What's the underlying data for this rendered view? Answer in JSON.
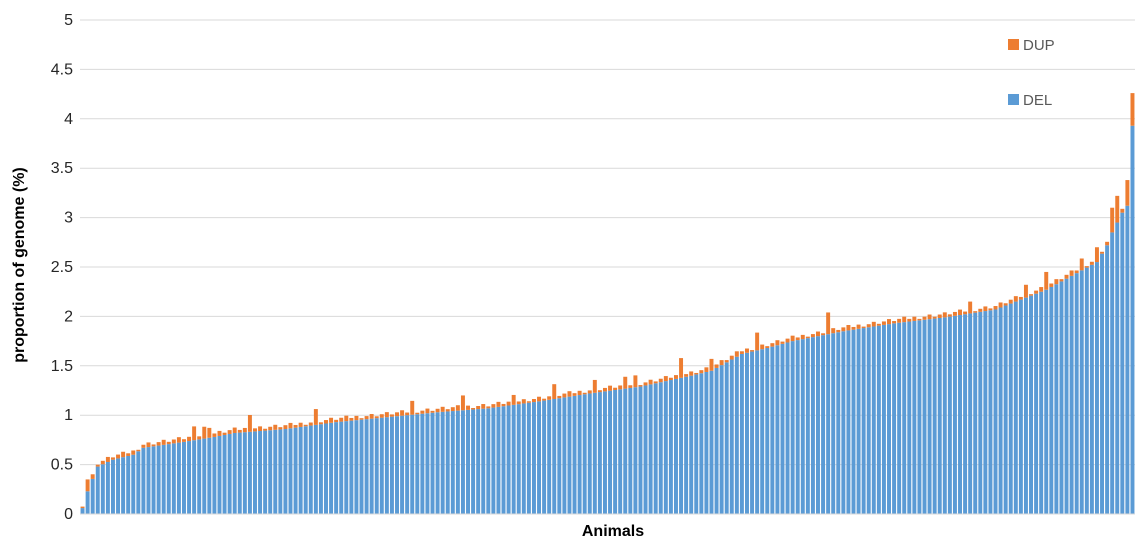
{
  "chart_data": {
    "type": "bar",
    "stacked": true,
    "title": "",
    "xlabel": "Animals",
    "ylabel": "proportion of genome (%)",
    "ylim": [
      0,
      5
    ],
    "yticks": [
      0,
      0.5,
      1,
      1.5,
      2,
      2.5,
      3,
      3.5,
      4,
      4.5,
      5
    ],
    "ytick_labels": [
      "0",
      "0.5",
      "1",
      "1.5",
      "2",
      "2.5",
      "3",
      "3.5",
      "4",
      "4.5",
      "5"
    ],
    "grid": true,
    "legend_position": "top-right",
    "n_animals": 208,
    "series": [
      {
        "name": "DEL",
        "color": "#5b9bd5"
      },
      {
        "name": "DUP",
        "color": "#ed7d31"
      }
    ],
    "del_trend_points": [
      [
        0,
        0.06
      ],
      [
        1,
        0.23
      ],
      [
        3,
        0.48
      ],
      [
        6,
        0.55
      ],
      [
        10,
        0.6
      ],
      [
        12,
        0.67
      ],
      [
        20,
        0.73
      ],
      [
        26,
        0.78
      ],
      [
        30,
        0.82
      ],
      [
        40,
        0.86
      ],
      [
        50,
        0.93
      ],
      [
        70,
        1.03
      ],
      [
        80,
        1.07
      ],
      [
        90,
        1.14
      ],
      [
        100,
        1.22
      ],
      [
        110,
        1.29
      ],
      [
        120,
        1.4
      ],
      [
        124,
        1.45
      ],
      [
        130,
        1.62
      ],
      [
        135,
        1.68
      ],
      [
        140,
        1.75
      ],
      [
        150,
        1.85
      ],
      [
        160,
        1.93
      ],
      [
        170,
        1.99
      ],
      [
        180,
        2.07
      ],
      [
        190,
        2.27
      ],
      [
        200,
        2.55
      ],
      [
        202,
        2.72
      ],
      [
        203,
        2.85
      ],
      [
        205,
        3.05
      ],
      [
        206,
        3.12
      ],
      [
        207,
        3.93
      ]
    ],
    "dup_notable": [
      [
        1,
        0.12
      ],
      [
        22,
        0.14
      ],
      [
        24,
        0.12
      ],
      [
        25,
        0.1
      ],
      [
        33,
        0.17
      ],
      [
        46,
        0.16
      ],
      [
        65,
        0.14
      ],
      [
        75,
        0.15
      ],
      [
        85,
        0.1
      ],
      [
        93,
        0.15
      ],
      [
        101,
        0.13
      ],
      [
        107,
        0.12
      ],
      [
        109,
        0.12
      ],
      [
        118,
        0.2
      ],
      [
        124,
        0.12
      ],
      [
        133,
        0.18
      ],
      [
        147,
        0.22
      ],
      [
        175,
        0.12
      ],
      [
        186,
        0.13
      ],
      [
        190,
        0.18
      ],
      [
        197,
        0.12
      ],
      [
        200,
        0.15
      ],
      [
        203,
        0.25
      ],
      [
        204,
        0.27
      ],
      [
        206,
        0.26
      ],
      [
        207,
        0.33
      ]
    ]
  }
}
